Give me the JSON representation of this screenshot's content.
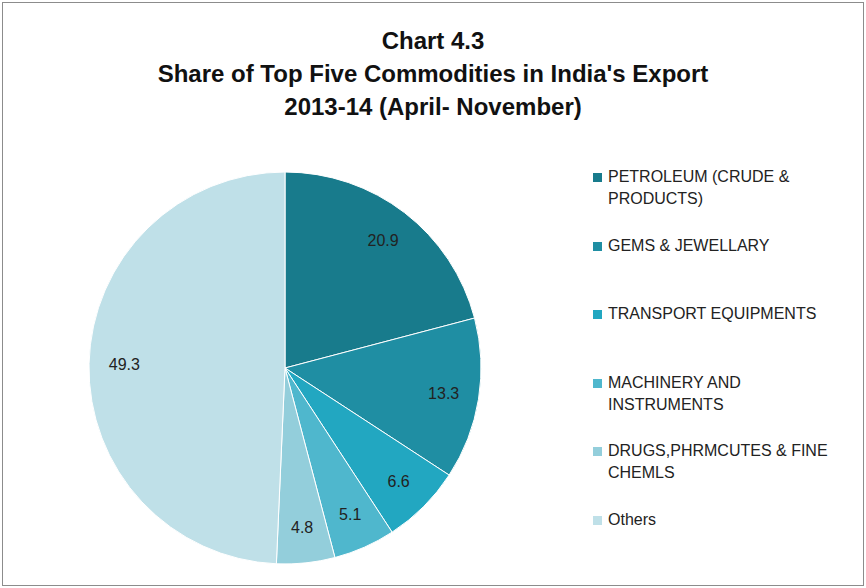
{
  "chart_data": {
    "type": "pie",
    "title": "Chart 4.3\nShare of Top Five Commodities in India's Export\n2013-14 (April- November)",
    "categories": [
      "PETROLEUM (CRUDE & PRODUCTS)",
      "GEMS & JEWELLARY",
      "TRANSPORT EQUIPMENTS",
      "MACHINERY AND INSTRUMENTS",
      "DRUGS,PHRMCUTES & FINE CHEMLS",
      "Others"
    ],
    "values": [
      20.9,
      13.3,
      6.6,
      5.1,
      4.8,
      49.3
    ],
    "colors": [
      "#187b8c",
      "#1f8ea3",
      "#22a7c1",
      "#4fb7cd",
      "#93cedb",
      "#bfe0e8"
    ],
    "data_labels": true,
    "legend": "right"
  }
}
